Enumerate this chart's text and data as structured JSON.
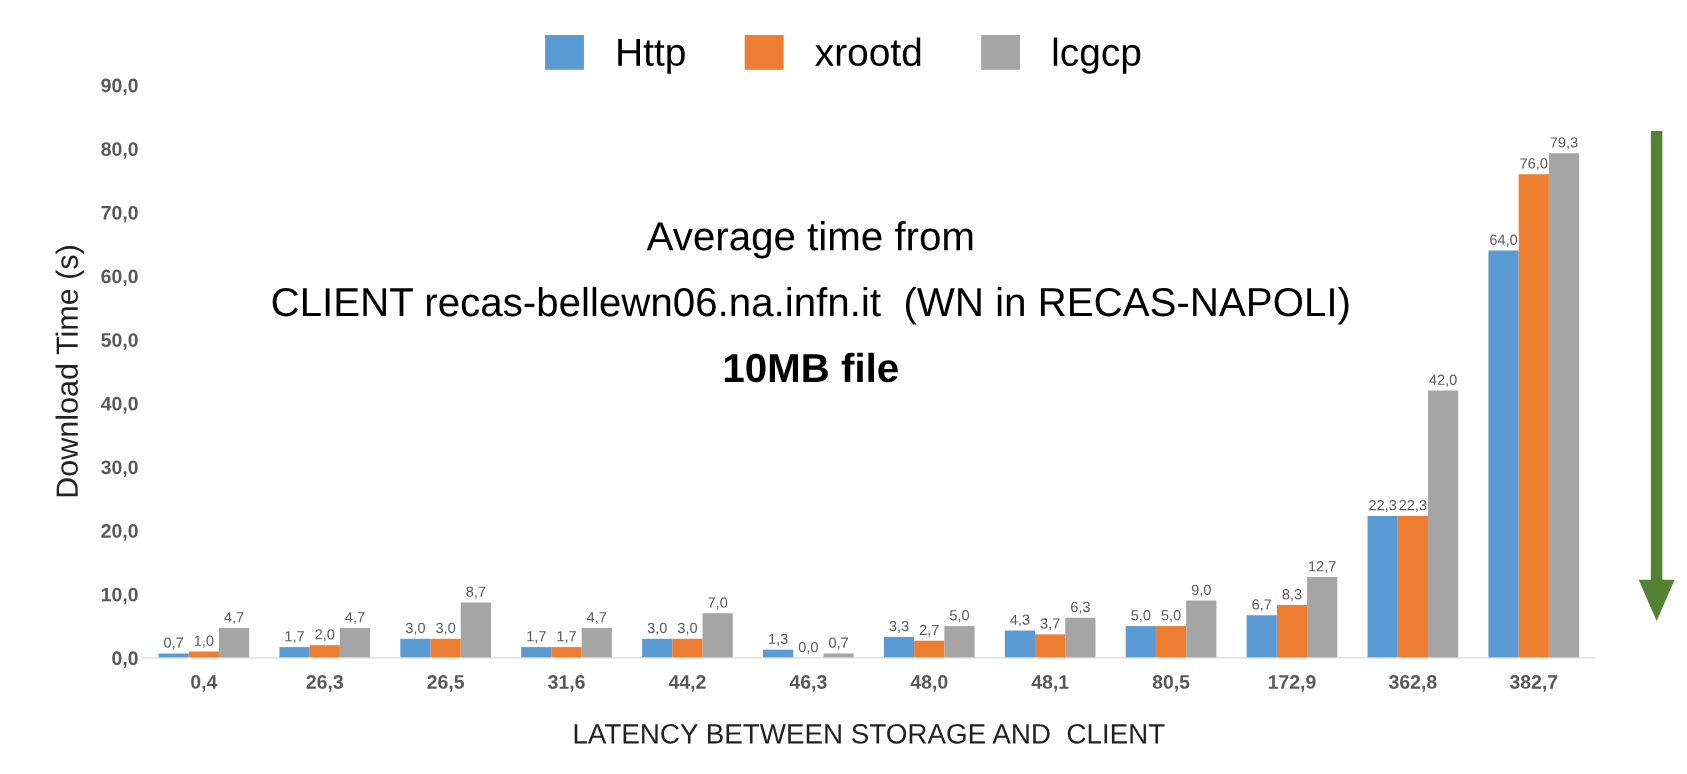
{
  "chart_data": {
    "type": "bar",
    "ylabel": "Download Time (s)",
    "xlabel": "LATENCY BETWEEN STORAGE AND  CLIENT",
    "categories": [
      "0,4",
      "26,3",
      "26,5",
      "31,6",
      "44,2",
      "46,3",
      "48,0",
      "48,1",
      "80,5",
      "172,9",
      "362,8",
      "382,7"
    ],
    "series": [
      {
        "name": "Http",
        "color": "#5b9bd5",
        "values": [
          0.7,
          1.7,
          3.0,
          1.7,
          3.0,
          1.3,
          3.3,
          4.3,
          5.0,
          6.7,
          22.3,
          64.0
        ],
        "value_labels": [
          "0,7",
          "1,7",
          "3,0",
          "1,7",
          "3,0",
          "1,3",
          "3,3",
          "4,3",
          "5,0",
          "6,7",
          "22,3",
          "64,0"
        ]
      },
      {
        "name": "xrootd",
        "color": "#ed7d31",
        "values": [
          1.0,
          2.0,
          3.0,
          1.7,
          3.0,
          0.0,
          2.7,
          3.7,
          5.0,
          8.3,
          22.3,
          76.0
        ],
        "value_labels": [
          "1,0",
          "2,0",
          "3,0",
          "1,7",
          "3,0",
          "0,0",
          "2,7",
          "3,7",
          "5,0",
          "8,3",
          "22,3",
          "76,0"
        ]
      },
      {
        "name": "lcgcp",
        "color": "#a5a5a5",
        "values": [
          4.7,
          4.7,
          8.7,
          4.7,
          7.0,
          0.7,
          5.0,
          6.3,
          9.0,
          12.7,
          42.0,
          79.3
        ],
        "value_labels": [
          "4,7",
          "4,7",
          "8,7",
          "4,7",
          "7,0",
          "0,7",
          "5,0",
          "6,3",
          "9,0",
          "12,7",
          "42,0",
          "79,3"
        ]
      }
    ],
    "ylim": [
      0,
      90
    ],
    "yticks": [
      {
        "value": 0,
        "label": "0,0"
      },
      {
        "value": 10,
        "label": "10,0"
      },
      {
        "value": 20,
        "label": "20,0"
      },
      {
        "value": 30,
        "label": "30,0"
      },
      {
        "value": 40,
        "label": "40,0"
      },
      {
        "value": 50,
        "label": "50,0"
      },
      {
        "value": 60,
        "label": "60,0"
      },
      {
        "value": 70,
        "label": "70,0"
      },
      {
        "value": 80,
        "label": "80,0"
      },
      {
        "value": 90,
        "label": "90,0"
      }
    ],
    "annotations": [
      "Average time from",
      "CLIENT recas-bellewn06.na.infn.it  (WN in RECAS-NAPOLI)",
      "10MB file"
    ],
    "legend": "top",
    "grid": false
  }
}
